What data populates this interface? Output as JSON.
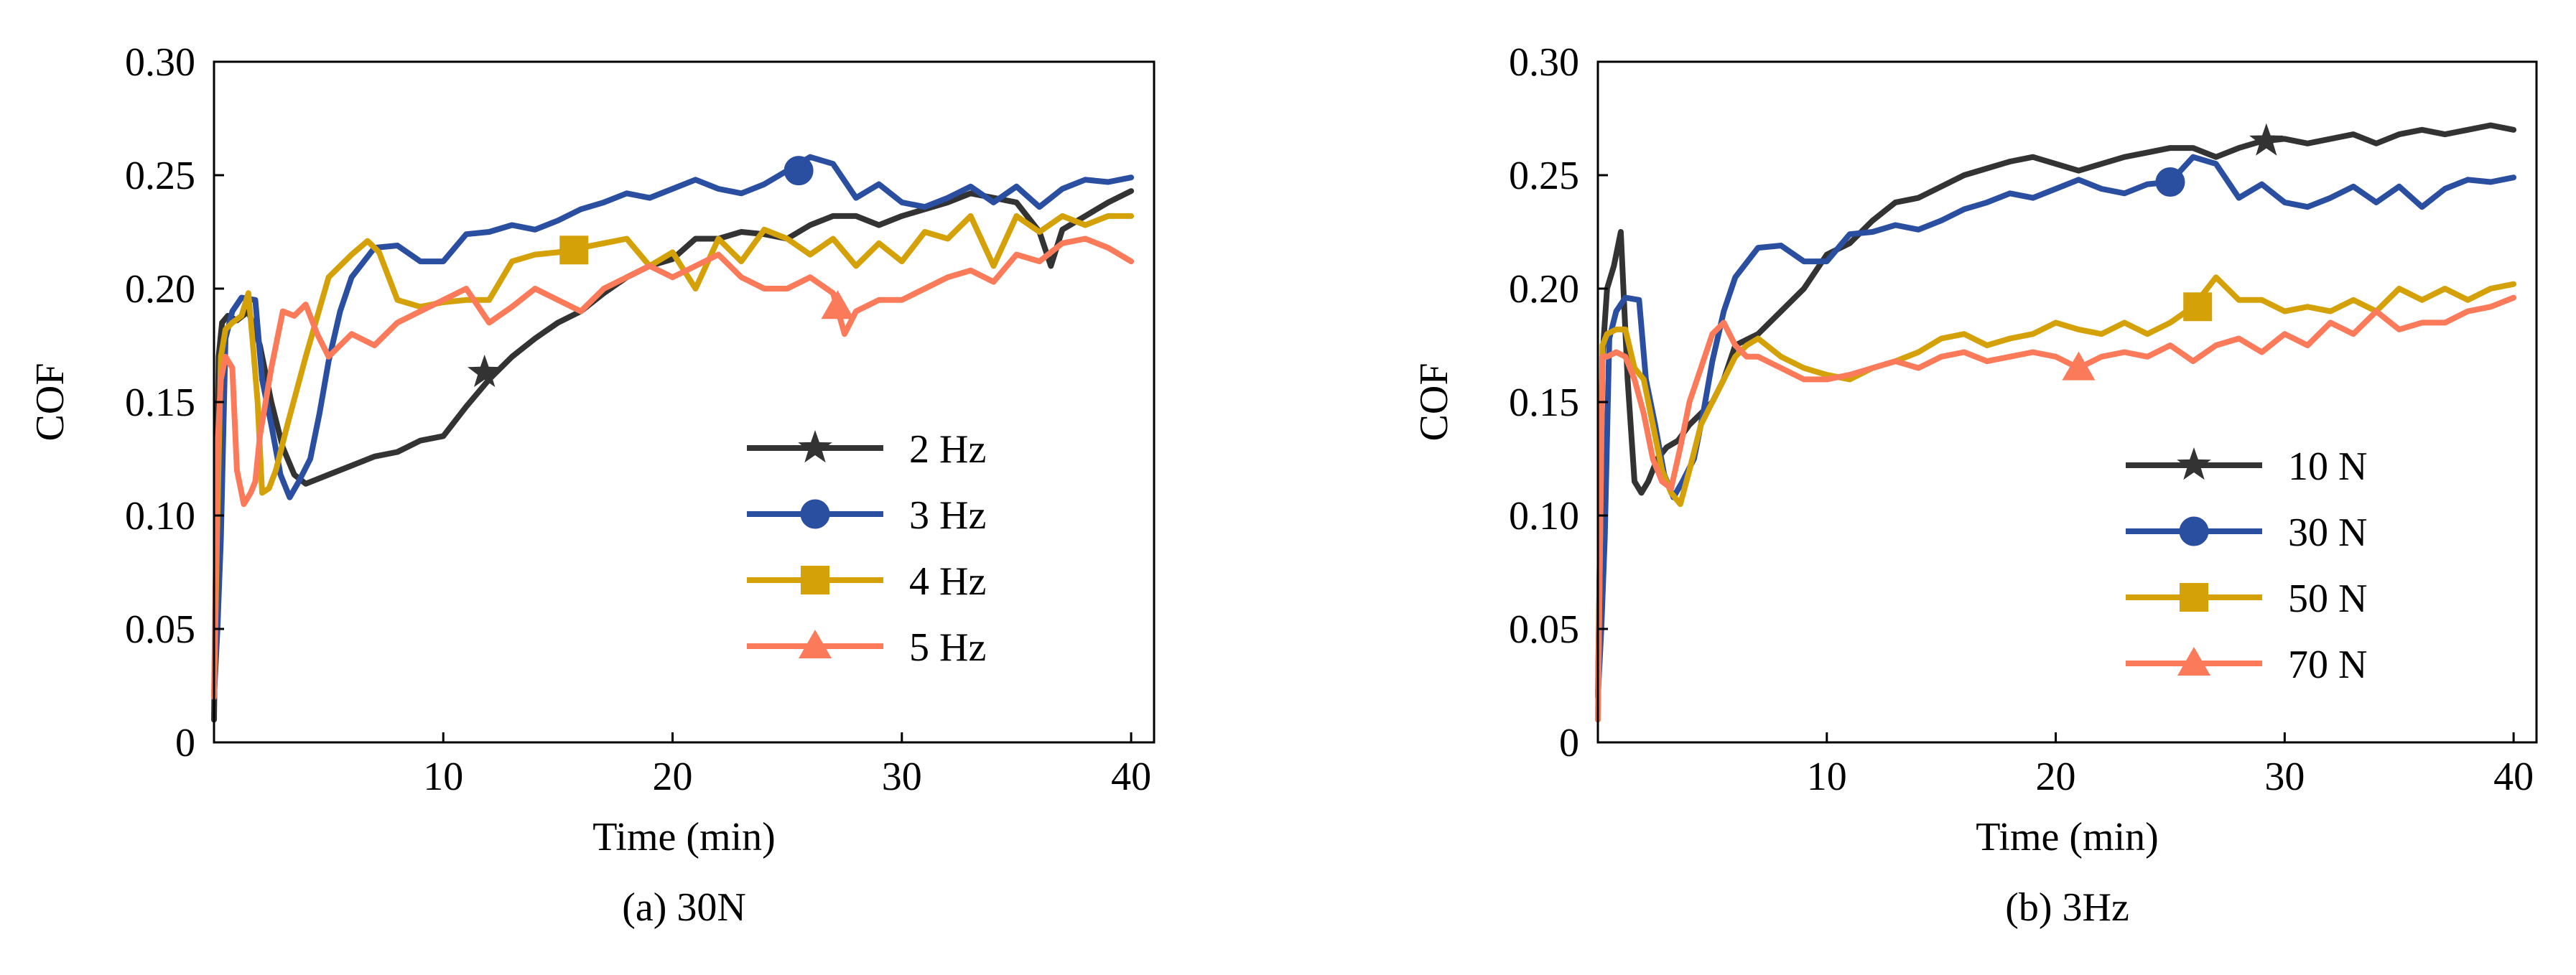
{
  "chart_data": [
    {
      "type": "line",
      "caption": "(a) 30N",
      "xlabel": "Time (min)",
      "ylabel": "COF",
      "xlim": [
        0,
        41
      ],
      "ylim": [
        0,
        0.3
      ],
      "xticks": [
        10,
        20,
        30,
        40
      ],
      "xtick_labels": [
        "10",
        "20",
        "30",
        "40"
      ],
      "yticks": [
        0,
        0.05,
        0.1,
        0.15,
        0.2,
        0.25,
        0.3
      ],
      "ytick_labels": [
        "0",
        "0.05",
        "0.10",
        "0.15",
        "0.20",
        "0.25",
        "0.30"
      ],
      "legend_position": "lower-right",
      "series": [
        {
          "name": "2 Hz",
          "color": "#333333",
          "marker": "star",
          "marker_at": [
            11.8,
            0.163
          ],
          "x": [
            0,
            0.2,
            0.35,
            0.6,
            1,
            1.5,
            2,
            2.5,
            3,
            3.5,
            4,
            5,
            6,
            7,
            8,
            9,
            10,
            11,
            12,
            13,
            14,
            15,
            16,
            17,
            18,
            19,
            20,
            21,
            22,
            23,
            24,
            25,
            26,
            27,
            28,
            29,
            30,
            31,
            32,
            33,
            34,
            35,
            36,
            36.5,
            37,
            38,
            39,
            40
          ],
          "y": [
            0.01,
            0.17,
            0.185,
            0.188,
            0.186,
            0.19,
            0.175,
            0.15,
            0.13,
            0.118,
            0.114,
            0.118,
            0.122,
            0.126,
            0.128,
            0.133,
            0.135,
            0.148,
            0.16,
            0.17,
            0.178,
            0.185,
            0.19,
            0.198,
            0.205,
            0.21,
            0.213,
            0.222,
            0.222,
            0.225,
            0.224,
            0.222,
            0.228,
            0.232,
            0.232,
            0.228,
            0.232,
            0.235,
            0.238,
            0.242,
            0.24,
            0.238,
            0.225,
            0.21,
            0.226,
            0.232,
            0.238,
            0.243
          ]
        },
        {
          "name": "3 Hz",
          "color": "#2b4fa0",
          "marker": "circle",
          "marker_at": [
            25.5,
            0.252
          ],
          "x": [
            0,
            0.15,
            0.3,
            0.5,
            0.8,
            1.2,
            1.8,
            2.1,
            2.5,
            2.9,
            3.3,
            3.7,
            4.2,
            4.6,
            5,
            5.5,
            6,
            7,
            8,
            9,
            10,
            11,
            12,
            13,
            14,
            15,
            16,
            17,
            18,
            19,
            20,
            21,
            22,
            23,
            24,
            25,
            26,
            27,
            28,
            29,
            30,
            31,
            32,
            33,
            34,
            35,
            36,
            37,
            38,
            39,
            40
          ],
          "y": [
            0.02,
            0.05,
            0.09,
            0.178,
            0.19,
            0.196,
            0.195,
            0.16,
            0.14,
            0.118,
            0.108,
            0.115,
            0.125,
            0.145,
            0.168,
            0.19,
            0.205,
            0.218,
            0.219,
            0.212,
            0.212,
            0.224,
            0.225,
            0.228,
            0.226,
            0.23,
            0.235,
            0.238,
            0.242,
            0.24,
            0.244,
            0.248,
            0.244,
            0.242,
            0.246,
            0.252,
            0.258,
            0.255,
            0.24,
            0.246,
            0.238,
            0.236,
            0.24,
            0.245,
            0.238,
            0.245,
            0.236,
            0.244,
            0.248,
            0.247,
            0.249
          ]
        },
        {
          "name": "4 Hz",
          "color": "#d4a208",
          "marker": "square",
          "marker_at": [
            15.7,
            0.217
          ],
          "x": [
            0,
            0.15,
            0.3,
            0.5,
            0.8,
            1.2,
            1.5,
            1.7,
            1.9,
            2.1,
            2.4,
            2.7,
            3.2,
            4,
            5,
            6,
            6.7,
            7.2,
            8,
            9,
            10,
            11,
            12,
            13,
            14,
            15,
            16,
            17,
            18,
            19,
            20,
            21,
            22,
            23,
            24,
            25,
            26,
            27,
            28,
            29,
            30,
            31,
            32,
            33,
            34,
            35,
            36,
            37,
            38,
            39,
            40
          ],
          "y": [
            0.02,
            0.1,
            0.17,
            0.182,
            0.185,
            0.188,
            0.198,
            0.175,
            0.15,
            0.11,
            0.112,
            0.12,
            0.14,
            0.17,
            0.205,
            0.215,
            0.221,
            0.216,
            0.195,
            0.192,
            0.194,
            0.195,
            0.195,
            0.212,
            0.215,
            0.216,
            0.218,
            0.22,
            0.222,
            0.21,
            0.216,
            0.2,
            0.222,
            0.212,
            0.226,
            0.222,
            0.215,
            0.222,
            0.21,
            0.22,
            0.212,
            0.225,
            0.222,
            0.232,
            0.21,
            0.232,
            0.225,
            0.232,
            0.228,
            0.232,
            0.232
          ]
        },
        {
          "name": "5 Hz",
          "color": "#fa7a5a",
          "marker": "triangle",
          "marker_at": [
            27.2,
            0.192
          ],
          "x": [
            0,
            0.15,
            0.3,
            0.5,
            0.8,
            1,
            1.3,
            1.6,
            1.8,
            2,
            2.5,
            3,
            3.5,
            4,
            4.5,
            5,
            6,
            7,
            8,
            9,
            10,
            11,
            12,
            13,
            14,
            15,
            16,
            17,
            18,
            19,
            20,
            21,
            22,
            23,
            24,
            25,
            26,
            27,
            27.5,
            28,
            29,
            30,
            31,
            32,
            33,
            34,
            35,
            36,
            37,
            38,
            39,
            40
          ],
          "y": [
            0.02,
            0.13,
            0.16,
            0.17,
            0.165,
            0.12,
            0.105,
            0.11,
            0.115,
            0.135,
            0.165,
            0.19,
            0.188,
            0.193,
            0.18,
            0.17,
            0.18,
            0.175,
            0.185,
            0.19,
            0.195,
            0.2,
            0.185,
            0.192,
            0.2,
            0.195,
            0.19,
            0.2,
            0.205,
            0.21,
            0.205,
            0.21,
            0.215,
            0.205,
            0.2,
            0.2,
            0.205,
            0.198,
            0.18,
            0.19,
            0.195,
            0.195,
            0.2,
            0.205,
            0.208,
            0.203,
            0.215,
            0.212,
            0.22,
            0.222,
            0.218,
            0.212
          ]
        }
      ]
    },
    {
      "type": "line",
      "caption": "(b) 3Hz",
      "xlabel": "Time (min)",
      "ylabel": "COF",
      "xlim": [
        0,
        41
      ],
      "ylim": [
        0,
        0.3
      ],
      "xticks": [
        10,
        20,
        30,
        40
      ],
      "xtick_labels": [
        "10",
        "20",
        "30",
        "40"
      ],
      "yticks": [
        0,
        0.05,
        0.1,
        0.15,
        0.2,
        0.25,
        0.3
      ],
      "ytick_labels": [
        "0",
        "0.05",
        "0.10",
        "0.15",
        "0.20",
        "0.25",
        "0.30"
      ],
      "legend_position": "middle-right",
      "series": [
        {
          "name": "10 N",
          "color": "#333333",
          "marker": "star",
          "marker_at": [
            29.2,
            0.265
          ],
          "x": [
            0,
            0.2,
            0.4,
            0.7,
            1,
            1.3,
            1.6,
            1.9,
            2.2,
            2.6,
            3,
            3.5,
            4,
            4.5,
            5,
            5.5,
            6,
            7,
            8,
            9,
            10,
            11,
            12,
            13,
            14,
            15,
            16,
            17,
            18,
            19,
            20,
            21,
            22,
            23,
            24,
            25,
            26,
            27,
            28,
            29,
            30,
            31,
            32,
            33,
            34,
            35,
            36,
            37,
            38,
            39,
            40
          ],
          "y": [
            0.02,
            0.17,
            0.2,
            0.21,
            0.225,
            0.16,
            0.115,
            0.11,
            0.115,
            0.125,
            0.13,
            0.133,
            0.14,
            0.145,
            0.15,
            0.16,
            0.175,
            0.18,
            0.19,
            0.2,
            0.215,
            0.22,
            0.23,
            0.238,
            0.24,
            0.245,
            0.25,
            0.253,
            0.256,
            0.258,
            0.255,
            0.252,
            0.255,
            0.258,
            0.26,
            0.262,
            0.262,
            0.258,
            0.262,
            0.265,
            0.266,
            0.264,
            0.266,
            0.268,
            0.264,
            0.268,
            0.27,
            0.268,
            0.27,
            0.272,
            0.27
          ]
        },
        {
          "name": "30 N",
          "color": "#2b4fa0",
          "marker": "circle",
          "marker_at": [
            25,
            0.247
          ],
          "x": [
            0,
            0.15,
            0.3,
            0.5,
            0.8,
            1.2,
            1.8,
            2.1,
            2.5,
            2.9,
            3.3,
            3.7,
            4.2,
            4.6,
            5,
            5.5,
            6,
            7,
            8,
            9,
            10,
            11,
            12,
            13,
            14,
            15,
            16,
            17,
            18,
            19,
            20,
            21,
            22,
            23,
            24,
            25,
            26,
            27,
            28,
            29,
            30,
            31,
            32,
            33,
            34,
            35,
            36,
            37,
            38,
            39,
            40
          ],
          "y": [
            0.02,
            0.05,
            0.09,
            0.178,
            0.19,
            0.196,
            0.195,
            0.16,
            0.14,
            0.118,
            0.108,
            0.115,
            0.125,
            0.145,
            0.168,
            0.19,
            0.205,
            0.218,
            0.219,
            0.212,
            0.212,
            0.224,
            0.225,
            0.228,
            0.226,
            0.23,
            0.235,
            0.238,
            0.242,
            0.24,
            0.244,
            0.248,
            0.244,
            0.242,
            0.246,
            0.247,
            0.258,
            0.255,
            0.24,
            0.246,
            0.238,
            0.236,
            0.24,
            0.245,
            0.238,
            0.245,
            0.236,
            0.244,
            0.248,
            0.247,
            0.249
          ]
        },
        {
          "name": "50 N",
          "color": "#d4a208",
          "marker": "square",
          "marker_at": [
            26.2,
            0.192
          ],
          "x": [
            0,
            0.2,
            0.4,
            0.8,
            1.2,
            1.6,
            2,
            2.4,
            2.8,
            3.2,
            3.6,
            4,
            4.5,
            5,
            5.5,
            6,
            6.5,
            7,
            8,
            9,
            10,
            11,
            12,
            13,
            14,
            15,
            16,
            17,
            18,
            19,
            20,
            21,
            22,
            23,
            24,
            25,
            26,
            27,
            28,
            29,
            30,
            31,
            32,
            33,
            34,
            35,
            36,
            37,
            38,
            39,
            40
          ],
          "y": [
            0.01,
            0.175,
            0.18,
            0.182,
            0.182,
            0.165,
            0.16,
            0.14,
            0.12,
            0.11,
            0.105,
            0.12,
            0.14,
            0.15,
            0.16,
            0.17,
            0.175,
            0.178,
            0.17,
            0.165,
            0.162,
            0.16,
            0.165,
            0.168,
            0.172,
            0.178,
            0.18,
            0.175,
            0.178,
            0.18,
            0.185,
            0.182,
            0.18,
            0.185,
            0.18,
            0.185,
            0.192,
            0.205,
            0.195,
            0.195,
            0.19,
            0.192,
            0.19,
            0.195,
            0.19,
            0.2,
            0.195,
            0.2,
            0.195,
            0.2,
            0.202
          ]
        },
        {
          "name": "70 N",
          "color": "#fa7a5a",
          "marker": "triangle",
          "marker_at": [
            21,
            0.165
          ],
          "x": [
            0,
            0.2,
            0.4,
            0.8,
            1.2,
            1.6,
            2,
            2.4,
            2.8,
            3.2,
            3.6,
            4,
            4.5,
            5,
            5.5,
            6,
            6.5,
            7,
            8,
            9,
            10,
            11,
            12,
            13,
            14,
            15,
            16,
            17,
            18,
            19,
            20,
            21,
            22,
            23,
            24,
            25,
            26,
            27,
            28,
            29,
            30,
            31,
            32,
            33,
            34,
            35,
            36,
            37,
            38,
            39,
            40
          ],
          "y": [
            0.01,
            0.17,
            0.17,
            0.172,
            0.17,
            0.16,
            0.145,
            0.125,
            0.115,
            0.112,
            0.13,
            0.15,
            0.165,
            0.18,
            0.185,
            0.175,
            0.17,
            0.17,
            0.165,
            0.16,
            0.16,
            0.162,
            0.165,
            0.168,
            0.165,
            0.17,
            0.172,
            0.168,
            0.17,
            0.172,
            0.17,
            0.165,
            0.17,
            0.172,
            0.17,
            0.175,
            0.168,
            0.175,
            0.178,
            0.172,
            0.18,
            0.175,
            0.185,
            0.18,
            0.19,
            0.182,
            0.185,
            0.185,
            0.19,
            0.192,
            0.196
          ]
        }
      ]
    }
  ]
}
